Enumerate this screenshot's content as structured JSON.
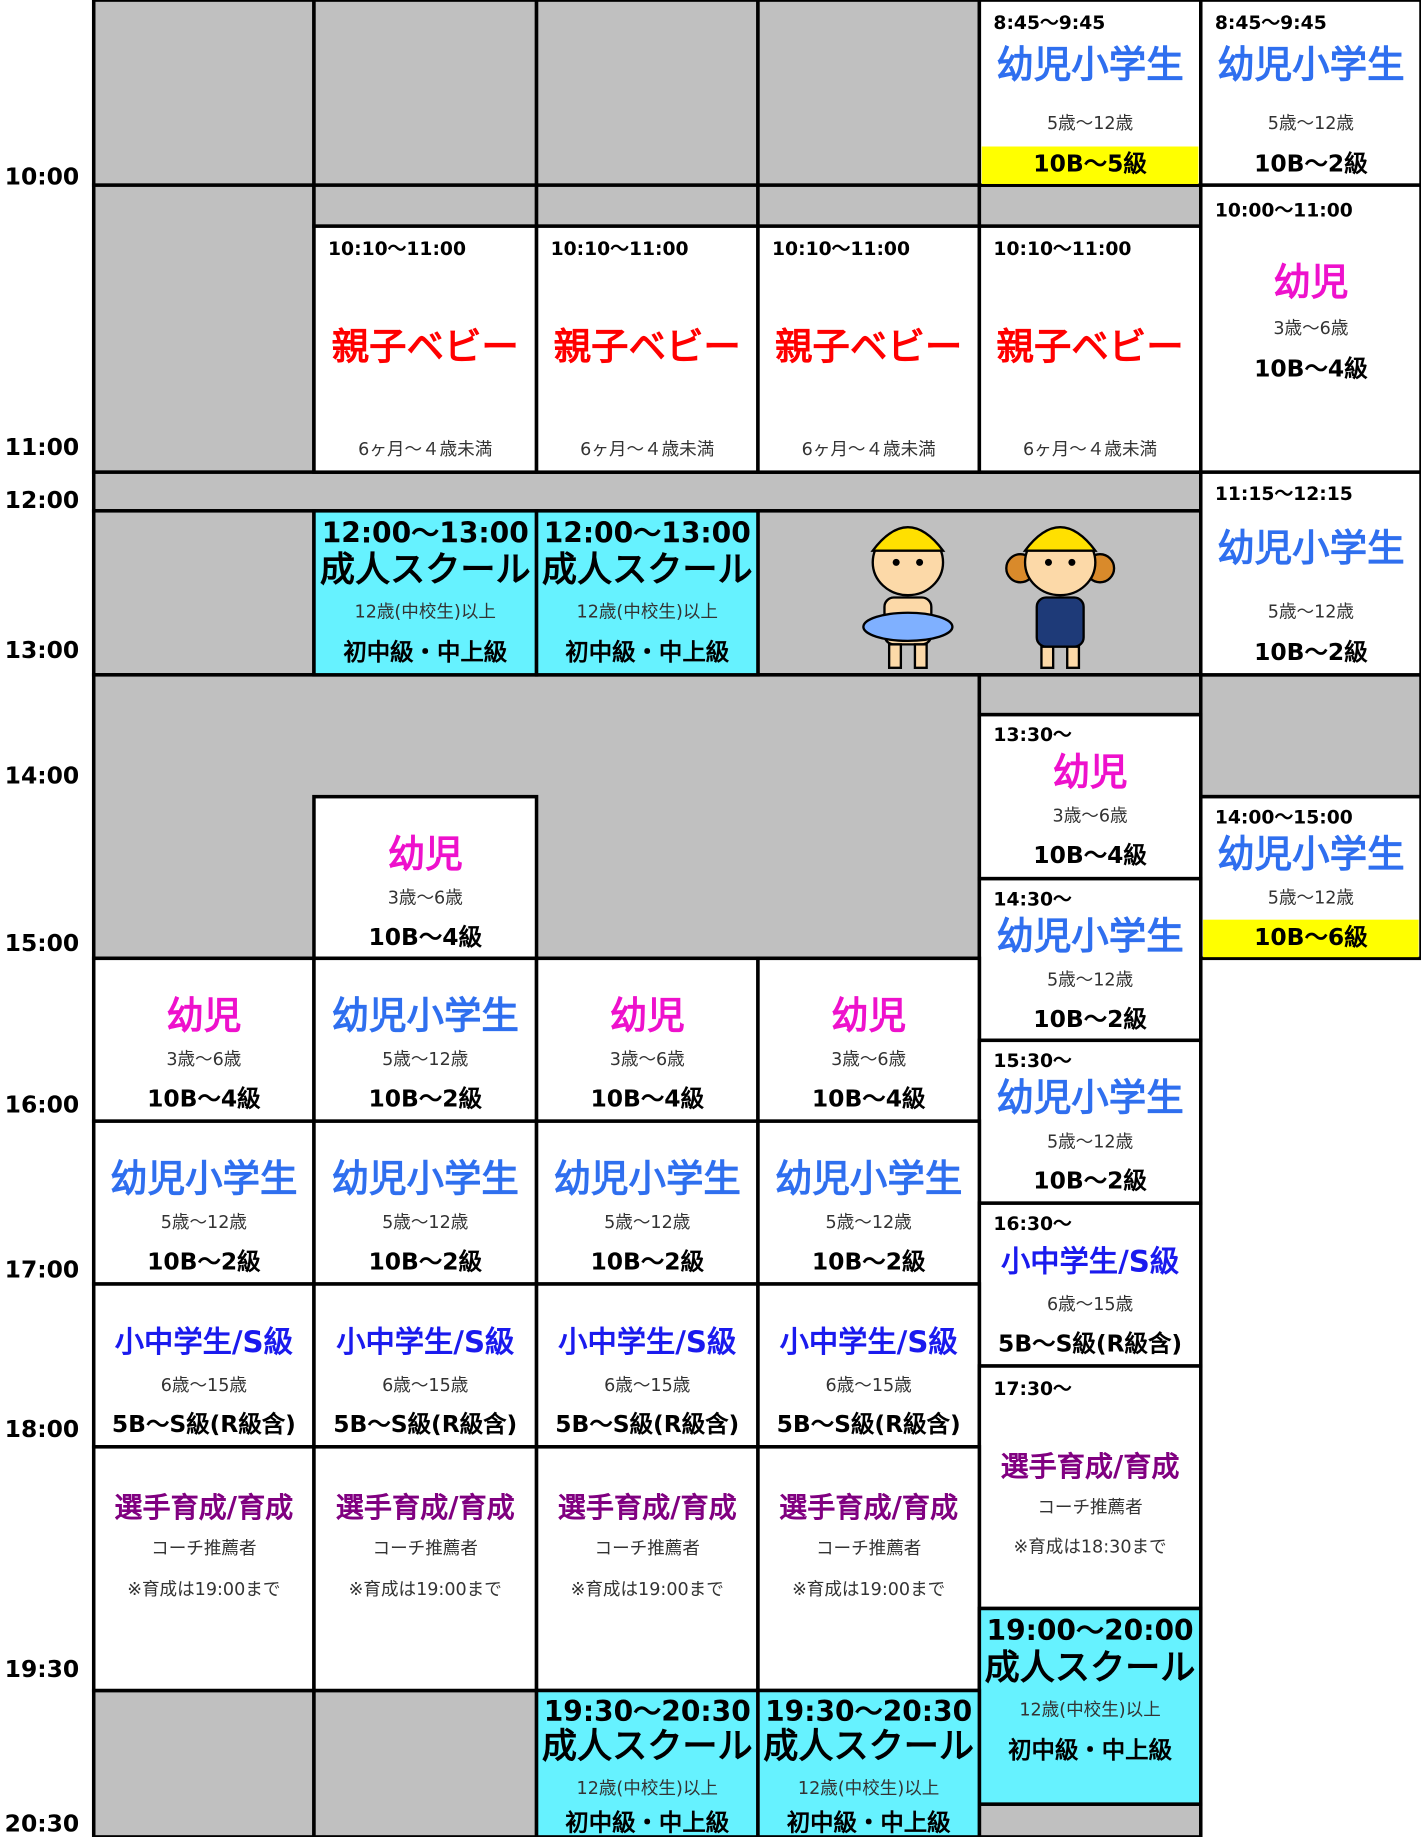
{
  "time_labels": [
    "10:00",
    "11:00",
    "12:00",
    "13:00",
    "14:00",
    "15:00",
    "16:00",
    "17:00",
    "18:00",
    "19:30",
    "20:30"
  ],
  "sessions": [
    {
      "time": "8:45～9:45",
      "title": "幼児小学生",
      "age": "5歳～12歳",
      "level": "10B～5級"
    },
    {
      "time": "8:45～9:45",
      "title": "幼児小学生",
      "age": "5歳～12歳",
      "level": "10B～2級"
    },
    {
      "time": "10:10～11:00",
      "title": "親子ベビー",
      "age": "6ヶ月～４歳未満"
    },
    {
      "time": "10:10～11:00",
      "title": "親子ベビー",
      "age": "6ヶ月～４歳未満"
    },
    {
      "time": "10:10～11:00",
      "title": "親子ベビー",
      "age": "6ヶ月～４歳未満"
    },
    {
      "time": "10:10～11:00",
      "title": "親子ベビー",
      "age": "6ヶ月～４歳未満"
    },
    {
      "time": "10:00～11:00",
      "title": "幼児",
      "age": "3歳～6歳",
      "level": "10B～4級"
    },
    {
      "time": "11:15～12:15",
      "title": "幼児小学生",
      "age": "5歳～12歳",
      "level": "10B～2級"
    },
    {
      "time": "12:00～13:00",
      "title": "成人スクール",
      "age": "12歳(中校生)以上",
      "level": "初中級・中上級"
    },
    {
      "time": "12:00～13:00",
      "title": "成人スクール",
      "age": "12歳(中校生)以上",
      "level": "初中級・中上級"
    },
    {
      "time": "13:30～",
      "title": "幼児",
      "age": "3歳～6歳",
      "level": "10B～4級"
    },
    {
      "time": "14:00～15:00",
      "title": "幼児小学生",
      "age": "5歳～12歳",
      "level": "10B～6級"
    },
    {
      "title": "幼児",
      "age": "3歳～6歳",
      "level": "10B～4級"
    },
    {
      "time": "14:30～",
      "title": "幼児小学生",
      "age": "5歳～12歳",
      "level": "10B～2級"
    },
    {
      "title": "幼児",
      "age": "3歳～6歳",
      "level": "10B～4級"
    },
    {
      "title": "幼児小学生",
      "age": "5歳～12歳",
      "level": "10B～2級"
    },
    {
      "title": "幼児",
      "age": "3歳～6歳",
      "level": "10B～4級"
    },
    {
      "title": "幼児",
      "age": "3歳～6歳",
      "level": "10B～4級"
    },
    {
      "time": "15:30～",
      "title": "幼児小学生",
      "age": "5歳～12歳",
      "level": "10B～2級"
    },
    {
      "title": "幼児小学生",
      "age": "5歳～12歳",
      "level": "10B～2級"
    },
    {
      "title": "幼児小学生",
      "age": "5歳～12歳",
      "level": "10B～2級"
    },
    {
      "title": "幼児小学生",
      "age": "5歳～12歳",
      "level": "10B～2級"
    },
    {
      "title": "幼児小学生",
      "age": "5歳～12歳",
      "level": "10B～2級"
    },
    {
      "time": "16:30～",
      "title": "小中学生/S級",
      "age": "6歳～15歳",
      "level": "5B～S級(R級含)"
    },
    {
      "title": "小中学生/S級",
      "age": "6歳～15歳",
      "level": "5B～S級(R級含)"
    },
    {
      "title": "小中学生/S級",
      "age": "6歳～15歳",
      "level": "5B～S級(R級含)"
    },
    {
      "title": "小中学生/S級",
      "age": "6歳～15歳",
      "level": "5B～S級(R級含)"
    },
    {
      "title": "小中学生/S級",
      "age": "6歳～15歳",
      "level": "5B～S級(R級含)"
    },
    {
      "time": "17:30～",
      "title": "選手育成/育成",
      "age": "コーチ推薦者",
      "note": "※育成は18:30まで"
    },
    {
      "title": "選手育成/育成",
      "age": "コーチ推薦者",
      "note": "※育成は19:00まで"
    },
    {
      "title": "選手育成/育成",
      "age": "コーチ推薦者",
      "note": "※育成は19:00まで"
    },
    {
      "title": "選手育成/育成",
      "age": "コーチ推薦者",
      "note": "※育成は19:00まで"
    },
    {
      "title": "選手育成/育成",
      "age": "コーチ推薦者",
      "note": "※育成は19:00まで"
    },
    {
      "time": "19:00～20:00",
      "title": "成人スクール",
      "age": "12歳(中校生)以上",
      "level": "初中級・中上級"
    },
    {
      "time": "19:30～20:30",
      "title": "成人スクール",
      "age": "12歳(中校生)以上",
      "level": "初中級・中上級"
    },
    {
      "time": "19:30～20:30",
      "title": "成人スクール",
      "age": "12歳(中校生)以上",
      "level": "初中級・中上級"
    }
  ]
}
